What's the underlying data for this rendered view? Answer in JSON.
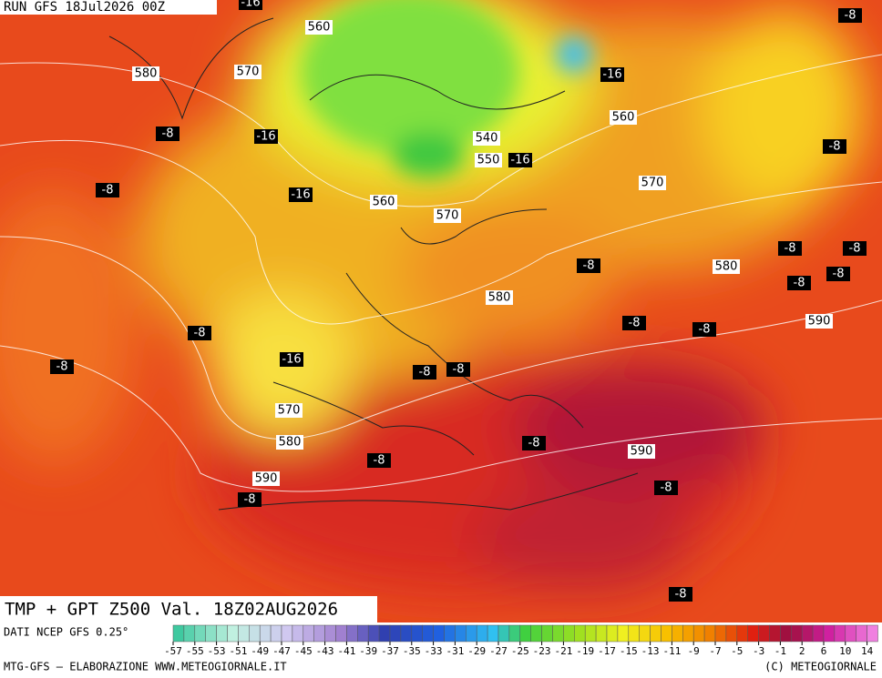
{
  "header": {
    "run": "RUN GFS 18Jul2026 00Z",
    "title": "TMP + GPT Z500 Val. 18Z02AUG2026"
  },
  "map": {
    "height_labels": [
      560,
      580,
      570,
      560,
      540,
      550,
      570,
      560,
      570,
      580,
      580,
      590,
      570,
      580,
      590,
      590
    ],
    "temp_labels": [
      -16,
      -8,
      -16,
      -8,
      -16,
      -8,
      -16,
      -8,
      -16,
      -8,
      -8,
      -8,
      -8,
      -8,
      -8,
      -8,
      -8,
      -16,
      -8,
      -8,
      -8,
      -8,
      -8,
      -8,
      -8,
      -8
    ]
  },
  "legend": {
    "source": "DATI NCEP GFS 0.25°",
    "ticks": [
      -57,
      -55,
      -53,
      -51,
      -49,
      -47,
      -45,
      -43,
      -41,
      -39,
      -37,
      -35,
      -33,
      -31,
      -29,
      -27,
      -25,
      -23,
      -21,
      -19,
      -17,
      -15,
      -13,
      -11,
      -9,
      -7,
      -5,
      -3,
      -1,
      2,
      6,
      10,
      14
    ]
  },
  "footer": {
    "left": "MTG-GFS — ELABORAZIONE WWW.METEOGIORNALE.IT",
    "right": "(C) METEOGIORNALE"
  }
}
